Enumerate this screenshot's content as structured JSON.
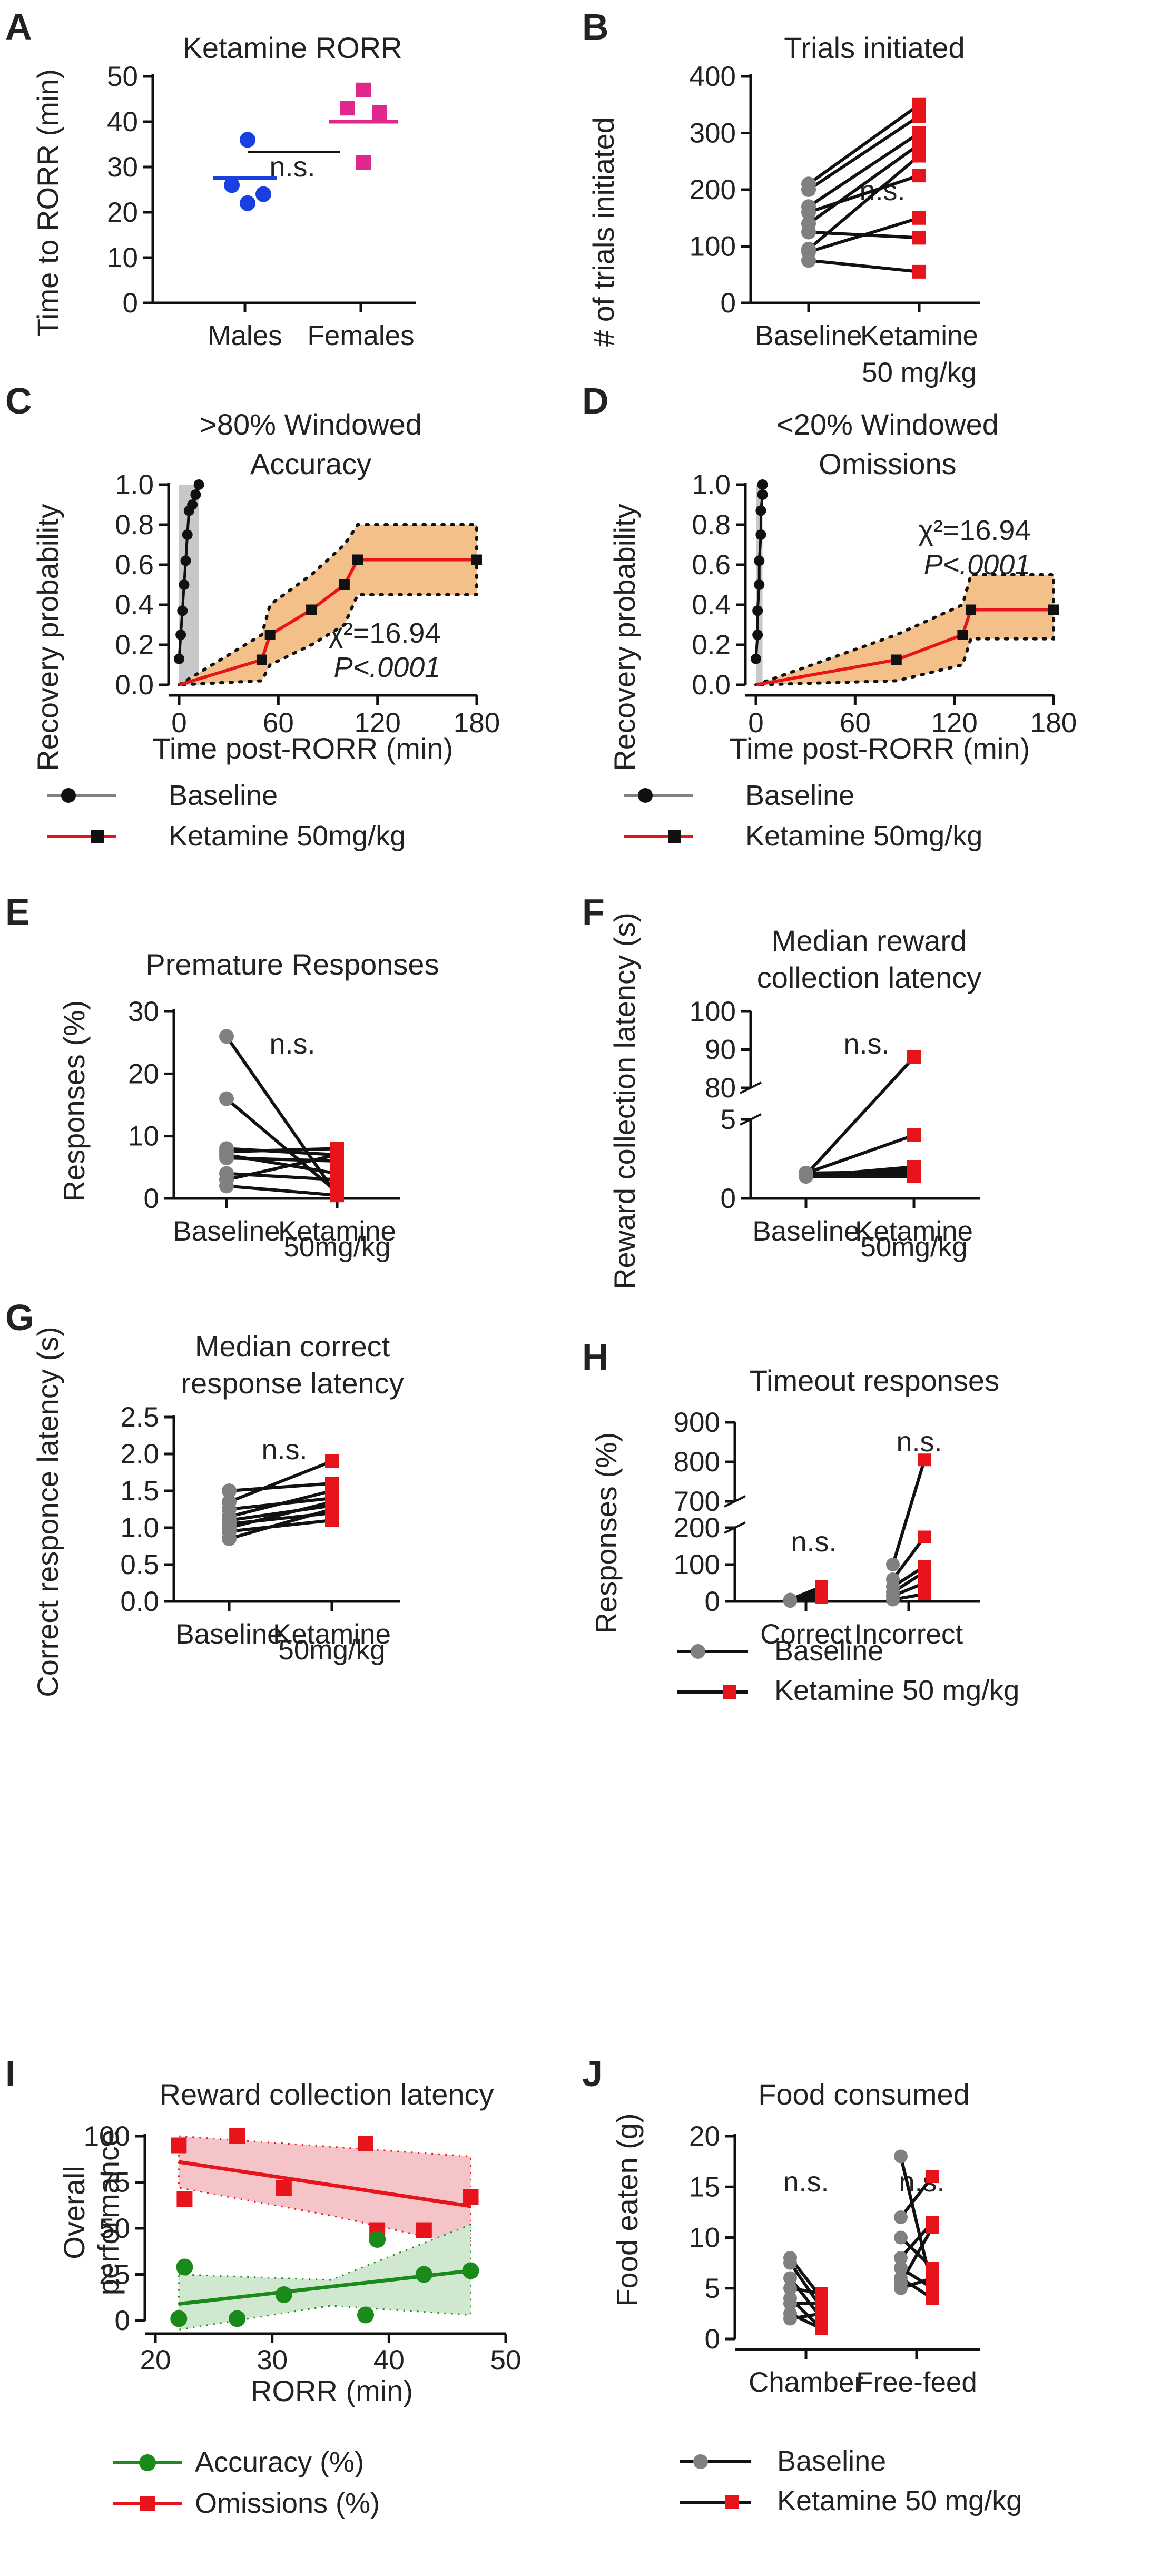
{
  "colors": {
    "black": "#111111",
    "red": "#e8141c",
    "blue": "#1a3fe0",
    "pink": "#e0288c",
    "green": "#1a8a1a",
    "grey": "#808080",
    "band": "#f4c08a",
    "redband": "#f4c4c8",
    "greenband": "#cfe8cf"
  },
  "chart_data": [
    {
      "id": "A",
      "type": "scatter",
      "letter": "A",
      "title": "Ketamine RORR",
      "ylabel": "Time to RORR (min)",
      "ylim": [
        0,
        50
      ],
      "yticks": [
        "0",
        "10",
        "20",
        "30",
        "40",
        "50"
      ],
      "categories": [
        "Males",
        "Females"
      ],
      "series": [
        {
          "name": "Males",
          "color": "#1a3fe0",
          "marker": "circle",
          "values": [
            36,
            26,
            24,
            22
          ],
          "mean": 27.5
        },
        {
          "name": "Females",
          "color": "#e0288c",
          "marker": "square",
          "values": [
            47,
            43,
            42,
            31
          ],
          "mean": 40
        }
      ],
      "annotation": "n.s."
    },
    {
      "id": "B",
      "type": "line",
      "letter": "B",
      "title": "Trials initiated",
      "ylabel": "# of trials initiated",
      "ylim": [
        0,
        400
      ],
      "yticks": [
        "0",
        "100",
        "200",
        "300",
        "400"
      ],
      "categories": [
        "Baseline",
        "Ketamine"
      ],
      "category_sub": [
        "",
        "50 mg/kg"
      ],
      "pairs": [
        [
          210,
          350
        ],
        [
          200,
          330
        ],
        [
          170,
          300
        ],
        [
          160,
          225
        ],
        [
          140,
          280
        ],
        [
          125,
          115
        ],
        [
          95,
          260
        ],
        [
          90,
          150
        ],
        [
          75,
          55
        ]
      ],
      "annotation": "n.s."
    },
    {
      "id": "C",
      "type": "line",
      "letter": "C",
      "title": ">80% Windowed",
      "title2": "Accuracy",
      "ylabel": "Recovery probability",
      "xlabel": "Time post-RORR (min)",
      "xlim": [
        0,
        180
      ],
      "ylim": [
        0,
        1
      ],
      "xticks": [
        "0",
        "60",
        "120",
        "180"
      ],
      "yticks": [
        "0.0",
        "0.2",
        "0.4",
        "0.6",
        "0.8",
        "1.0"
      ],
      "baseline": {
        "name": "Baseline",
        "x": [
          0,
          1,
          2,
          3,
          4,
          5,
          6,
          8,
          10,
          12
        ],
        "y": [
          0.13,
          0.25,
          0.37,
          0.5,
          0.62,
          0.75,
          0.87,
          0.9,
          0.95,
          1.0
        ]
      },
      "ketamine": {
        "name": "Ketamine 50mg/kg",
        "x": [
          0,
          50,
          55,
          80,
          100,
          108,
          180
        ],
        "y": [
          0,
          0.125,
          0.25,
          0.375,
          0.5,
          0.625,
          0.625
        ],
        "band_lo": [
          0,
          0.02,
          0.1,
          0.2,
          0.3,
          0.45,
          0.45
        ],
        "band_hi": [
          0,
          0.25,
          0.4,
          0.55,
          0.7,
          0.8,
          0.8
        ]
      },
      "stat1": "χ²=16.94",
      "stat2": "P<.0001",
      "legend": [
        "Baseline",
        "Ketamine 50mg/kg"
      ]
    },
    {
      "id": "D",
      "type": "line",
      "letter": "D",
      "title": "<20% Windowed",
      "title2": "Omissions",
      "ylabel": "Recovery probability",
      "xlabel": "Time post-RORR (min)",
      "xlim": [
        0,
        180
      ],
      "ylim": [
        0,
        1
      ],
      "xticks": [
        "0",
        "60",
        "120",
        "180"
      ],
      "yticks": [
        "0.0",
        "0.2",
        "0.4",
        "0.6",
        "0.8",
        "1.0"
      ],
      "baseline": {
        "name": "Baseline",
        "x": [
          0,
          1,
          1,
          2,
          2,
          3,
          3,
          4,
          4
        ],
        "y": [
          0.13,
          0.25,
          0.37,
          0.5,
          0.62,
          0.75,
          0.87,
          0.95,
          1.0
        ]
      },
      "ketamine": {
        "name": "Ketamine 50mg/kg",
        "x": [
          0,
          85,
          125,
          130,
          180
        ],
        "y": [
          0,
          0.125,
          0.25,
          0.375,
          0.375
        ],
        "band_lo": [
          0,
          0.02,
          0.1,
          0.23,
          0.23
        ],
        "band_hi": [
          0,
          0.25,
          0.4,
          0.55,
          0.55
        ]
      },
      "stat1": "χ²=16.94",
      "stat2": "P<.0001",
      "legend": [
        "Baseline",
        "Ketamine 50mg/kg"
      ]
    },
    {
      "id": "E",
      "type": "line",
      "letter": "E",
      "title": "Premature Responses",
      "ylabel": "Responses (%)",
      "ylim": [
        0,
        30
      ],
      "yticks": [
        "0",
        "10",
        "20",
        "30"
      ],
      "categories": [
        "Baseline",
        "Ketamine"
      ],
      "category_sub": [
        "",
        "50mg/kg"
      ],
      "pairs": [
        [
          26,
          0.5
        ],
        [
          16,
          1
        ],
        [
          8,
          7
        ],
        [
          7.5,
          8
        ],
        [
          7,
          4
        ],
        [
          6.5,
          6
        ],
        [
          4,
          3
        ],
        [
          3,
          7
        ],
        [
          2,
          0.5
        ]
      ],
      "annotation": "n.s."
    },
    {
      "id": "F",
      "type": "line",
      "letter": "F",
      "title": "Median reward",
      "title2": "collection latency",
      "ylabel": "Reward collection latency (s)",
      "yticks": [
        "0",
        "5",
        "80",
        "90",
        "100"
      ],
      "categories": [
        "Baseline",
        "Ketamine"
      ],
      "category_sub": [
        "",
        "50mg/kg"
      ],
      "pairs": [
        [
          1.5,
          88
        ],
        [
          1.6,
          4
        ],
        [
          1.4,
          2
        ],
        [
          1.5,
          1.8
        ],
        [
          1.6,
          1.7
        ],
        [
          1.5,
          1.6
        ],
        [
          1.4,
          1.5
        ],
        [
          1.5,
          1.5
        ],
        [
          1.4,
          1.4
        ]
      ],
      "annotation": "n.s."
    },
    {
      "id": "G",
      "type": "line",
      "letter": "G",
      "title": "Median correct",
      "title2": "response latency",
      "ylabel": "Correct responce latency (s)",
      "ylim": [
        0,
        2.5
      ],
      "yticks": [
        "0.0",
        "0.5",
        "1.0",
        "1.5",
        "2.0",
        "2.5"
      ],
      "categories": [
        "Baseline",
        "Ketamine"
      ],
      "category_sub": [
        "",
        "50mg/kg"
      ],
      "pairs": [
        [
          1.5,
          1.6
        ],
        [
          1.35,
          1.9
        ],
        [
          1.25,
          1.4
        ],
        [
          1.15,
          1.5
        ],
        [
          1.1,
          1.3
        ],
        [
          1.05,
          1.2
        ],
        [
          1.0,
          1.35
        ],
        [
          0.95,
          1.1
        ],
        [
          0.85,
          1.25
        ]
      ],
      "annotation": "n.s."
    },
    {
      "id": "H",
      "type": "line",
      "letter": "H",
      "title": "Timeout responses",
      "ylabel": "Responses (%)",
      "yticks": [
        "0",
        "100",
        "200",
        "700",
        "800",
        "900"
      ],
      "categories": [
        "Correct",
        "Incorrect"
      ],
      "correct_pairs": [
        [
          5,
          40
        ],
        [
          4,
          30
        ],
        [
          3,
          25
        ],
        [
          2,
          20
        ],
        [
          1,
          10
        ]
      ],
      "incorrect_pairs": [
        [
          100,
          805
        ],
        [
          60,
          175
        ],
        [
          40,
          95
        ],
        [
          25,
          80
        ],
        [
          15,
          50
        ],
        [
          5,
          20
        ]
      ],
      "annotation_left": "n.s.",
      "annotation_right": "n.s.",
      "legend": [
        "Baseline",
        "Ketamine 50 mg/kg"
      ]
    },
    {
      "id": "I",
      "type": "scatter",
      "letter": "I",
      "title": "Reward collection latency",
      "ylabel": "Overall performance",
      "xlabel": "RORR (min)",
      "xlim": [
        20,
        50
      ],
      "ylim": [
        0,
        100
      ],
      "xticks": [
        "20",
        "30",
        "40",
        "50"
      ],
      "yticks": [
        "0",
        "25",
        "50",
        "75",
        "100"
      ],
      "series": [
        {
          "name": "Accuracy (%)",
          "color": "#1a8a1a",
          "marker": "circle",
          "x": [
            22,
            22.5,
            27,
            31,
            38,
            39,
            43,
            47
          ],
          "y": [
            1,
            29,
            1,
            14,
            3,
            44,
            25,
            27
          ],
          "fit": [
            [
              22,
              9
            ],
            [
              47,
              27
            ]
          ]
        },
        {
          "name": "Omissions (%)",
          "color": "#e8141c",
          "marker": "square",
          "x": [
            22,
            22.5,
            27,
            31,
            38,
            39,
            43,
            47
          ],
          "y": [
            95,
            66,
            100,
            72,
            96,
            49,
            49,
            67
          ],
          "fit": [
            [
              22,
              86
            ],
            [
              47,
              62
            ]
          ]
        }
      ],
      "legend": [
        "Accuracy (%)",
        "Omissions (%)"
      ]
    },
    {
      "id": "J",
      "type": "line",
      "letter": "J",
      "title": "Food consumed",
      "ylabel": "Food eaten (g)",
      "ylim": [
        0,
        20
      ],
      "yticks": [
        "0",
        "5",
        "10",
        "15",
        "20"
      ],
      "categories": [
        "Chamber",
        "Free-feed"
      ],
      "chamber_pairs": [
        [
          8,
          4
        ],
        [
          7.5,
          3
        ],
        [
          6,
          2
        ],
        [
          5,
          4.5
        ],
        [
          4,
          1
        ],
        [
          3.5,
          3.5
        ],
        [
          2.5,
          1
        ],
        [
          2,
          2.5
        ]
      ],
      "freefeed_pairs": [
        [
          18,
          5
        ],
        [
          12,
          16
        ],
        [
          10,
          7
        ],
        [
          8,
          11.5
        ],
        [
          7,
          5
        ],
        [
          6,
          4
        ],
        [
          5.5,
          11
        ],
        [
          5,
          6
        ]
      ],
      "annotation_left": "n.s.",
      "annotation_right": "n.s.",
      "legend": [
        "Baseline",
        "Ketamine 50 mg/kg"
      ]
    }
  ]
}
